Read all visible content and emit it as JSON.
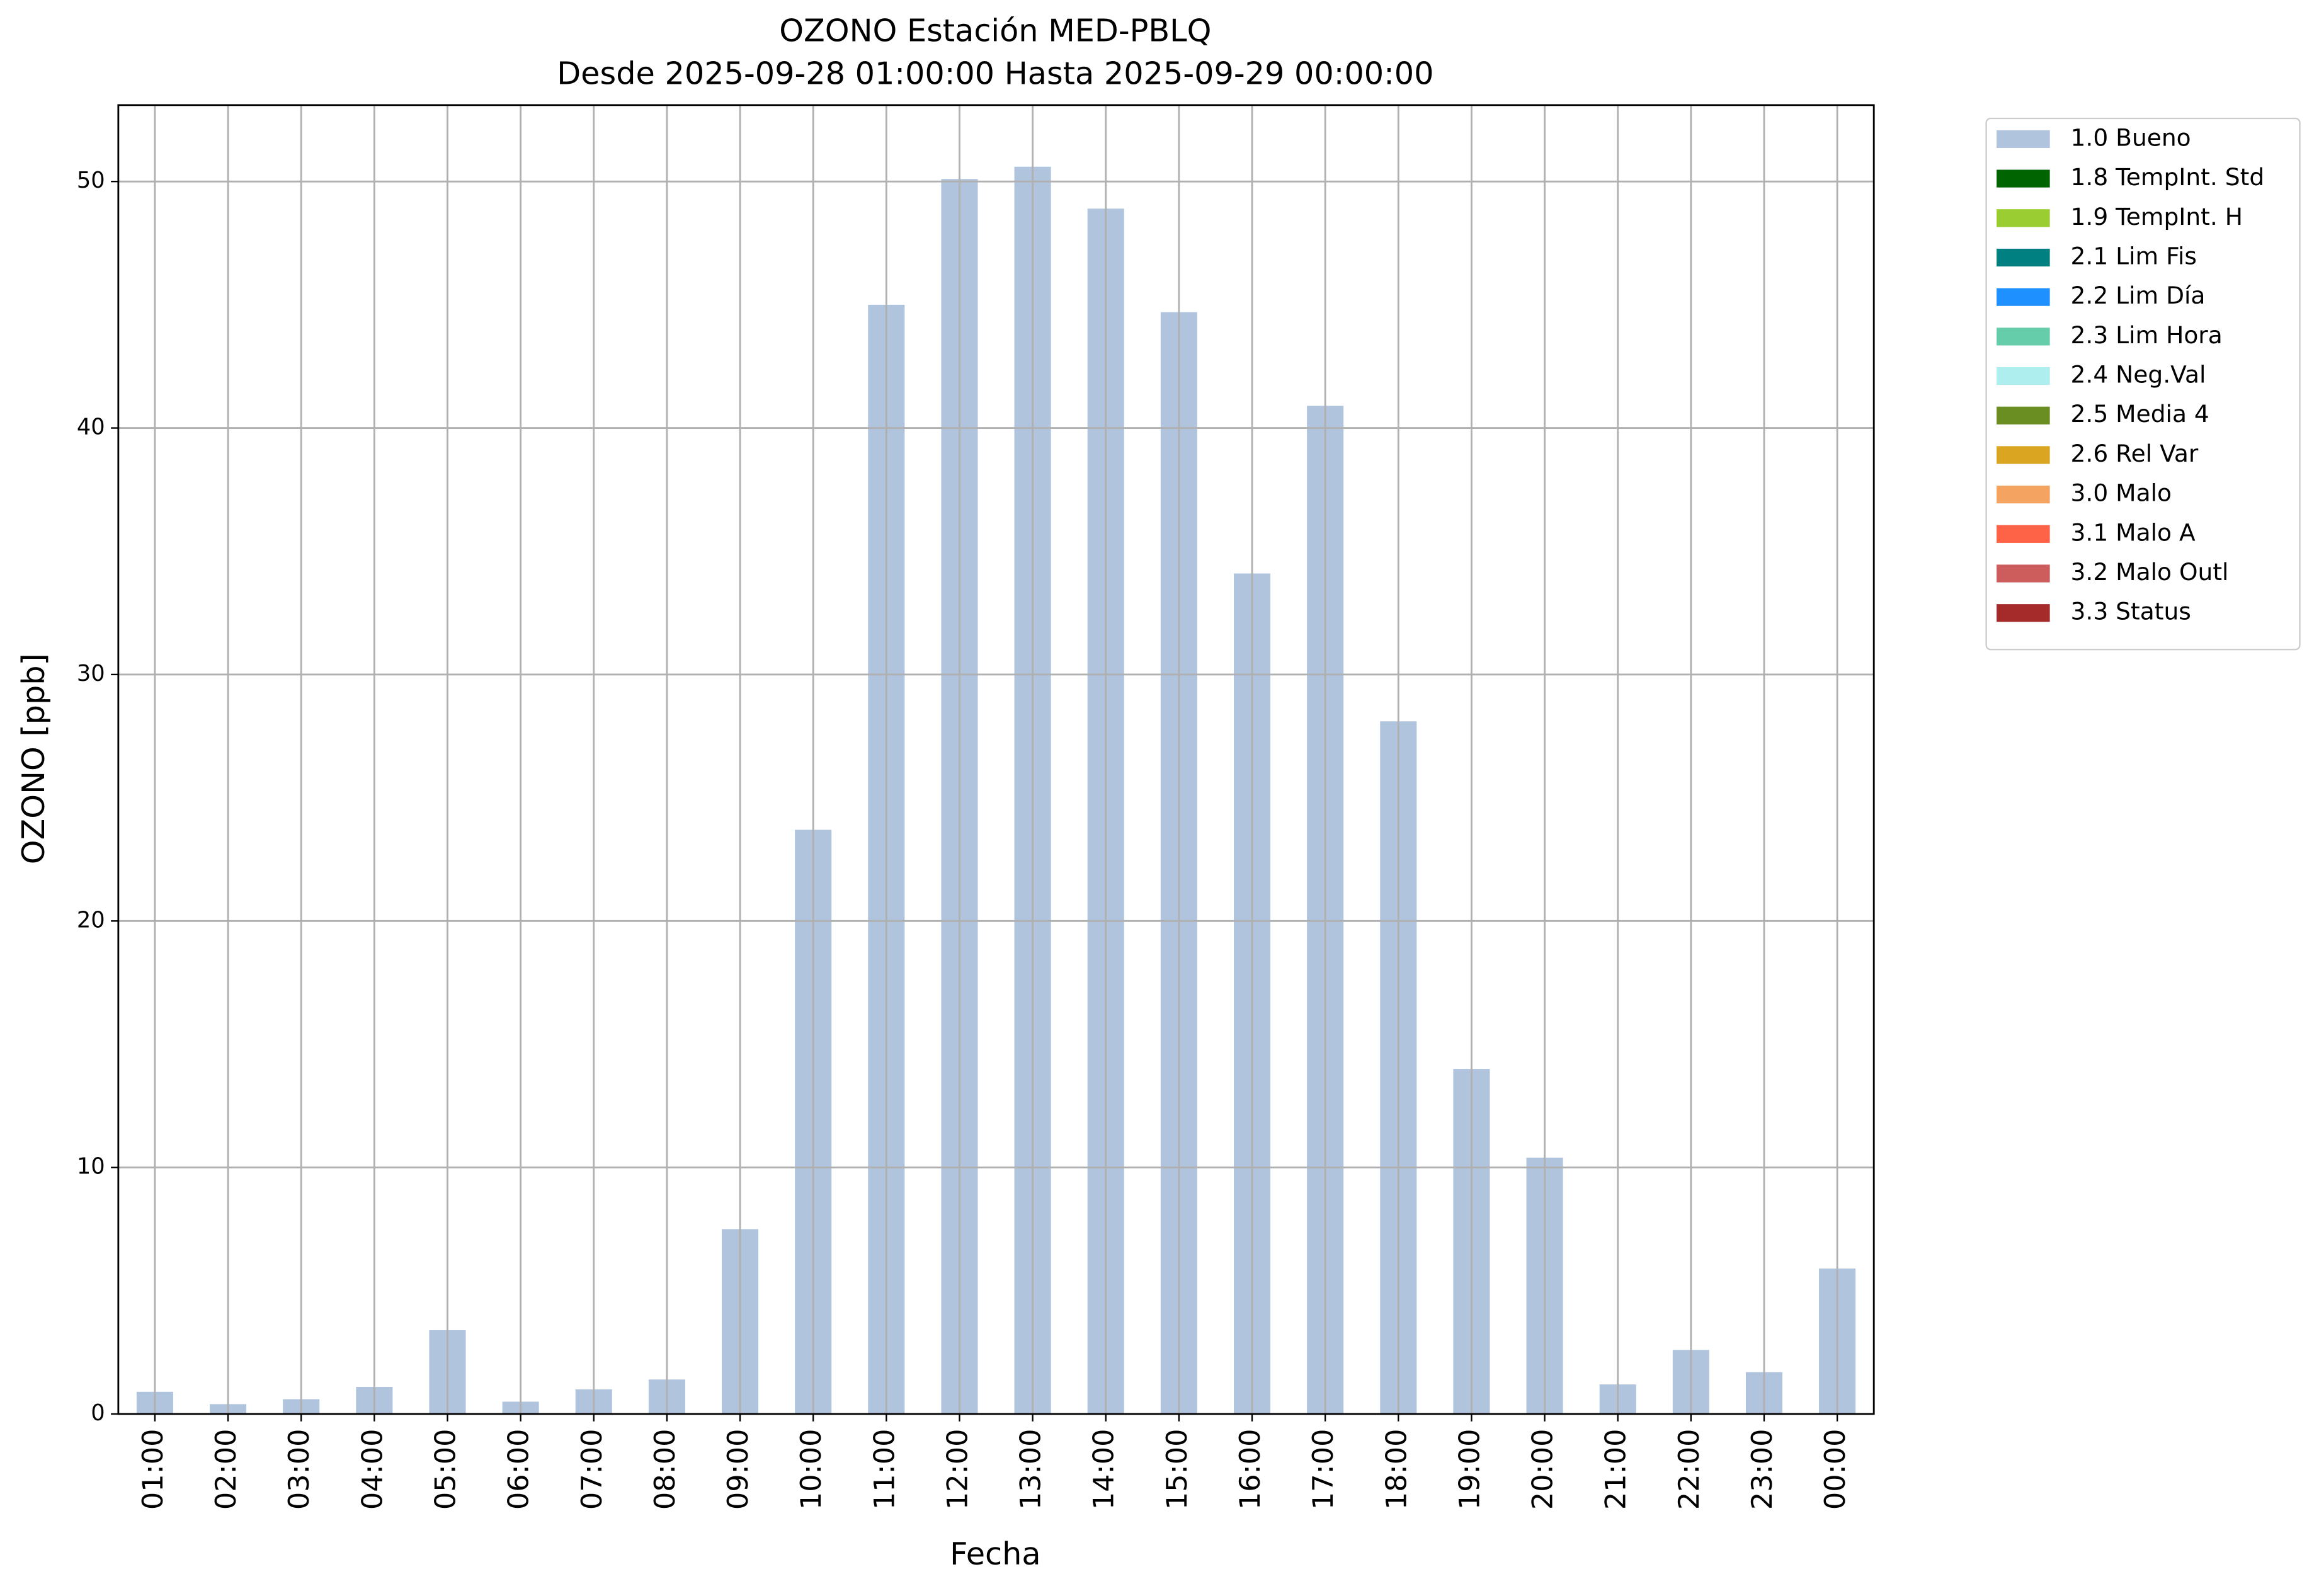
{
  "chart_data": {
    "type": "bar",
    "title": "OZONO Estación MED-PBLQ",
    "subtitle": "Desde 2025-09-28 01:00:00 Hasta 2025-09-29 00:00:00",
    "x_label": "Fecha",
    "y_label": "OZONO [ppb]",
    "categories": [
      "01:00",
      "02:00",
      "03:00",
      "04:00",
      "05:00",
      "06:00",
      "07:00",
      "08:00",
      "09:00",
      "10:00",
      "11:00",
      "12:00",
      "13:00",
      "14:00",
      "15:00",
      "16:00",
      "17:00",
      "18:00",
      "19:00",
      "20:00",
      "21:00",
      "22:00",
      "23:00",
      "00:00"
    ],
    "series": [
      {
        "name": "1.0 Bueno",
        "color": "#b0c4de",
        "values": [
          0.9,
          0.4,
          0.6,
          1.1,
          3.4,
          0.5,
          1.0,
          1.4,
          7.5,
          23.7,
          45.0,
          50.1,
          50.6,
          48.9,
          44.7,
          34.1,
          40.9,
          28.1,
          14.0,
          10.4,
          1.2,
          2.6,
          1.7,
          5.9
        ]
      },
      {
        "name": "1.8 TempInt. Std",
        "color": "#006400"
      },
      {
        "name": "1.9 TempInt. H",
        "color": "#9acd32"
      },
      {
        "name": "2.1 Lim Fis",
        "color": "#008080"
      },
      {
        "name": "2.2 Lim Día",
        "color": "#1e90ff"
      },
      {
        "name": "2.3 Lim Hora",
        "color": "#66cdaa"
      },
      {
        "name": "2.4 Neg.Val",
        "color": "#afeeee"
      },
      {
        "name": "2.5 Media 4",
        "color": "#6b8e23"
      },
      {
        "name": "2.6 Rel Var",
        "color": "#daa520"
      },
      {
        "name": "3.0 Malo",
        "color": "#f4a460"
      },
      {
        "name": "3.1 Malo A",
        "color": "#ff6347"
      },
      {
        "name": "3.2 Malo Outl",
        "color": "#cd5c5c"
      },
      {
        "name": "3.3 Status",
        "color": "#a52a2a"
      }
    ],
    "ylim": [
      0,
      53.1
    ],
    "yticks": [
      0,
      10,
      20,
      30,
      40,
      50
    ],
    "grid": true,
    "legend": "outside-upper-right"
  }
}
